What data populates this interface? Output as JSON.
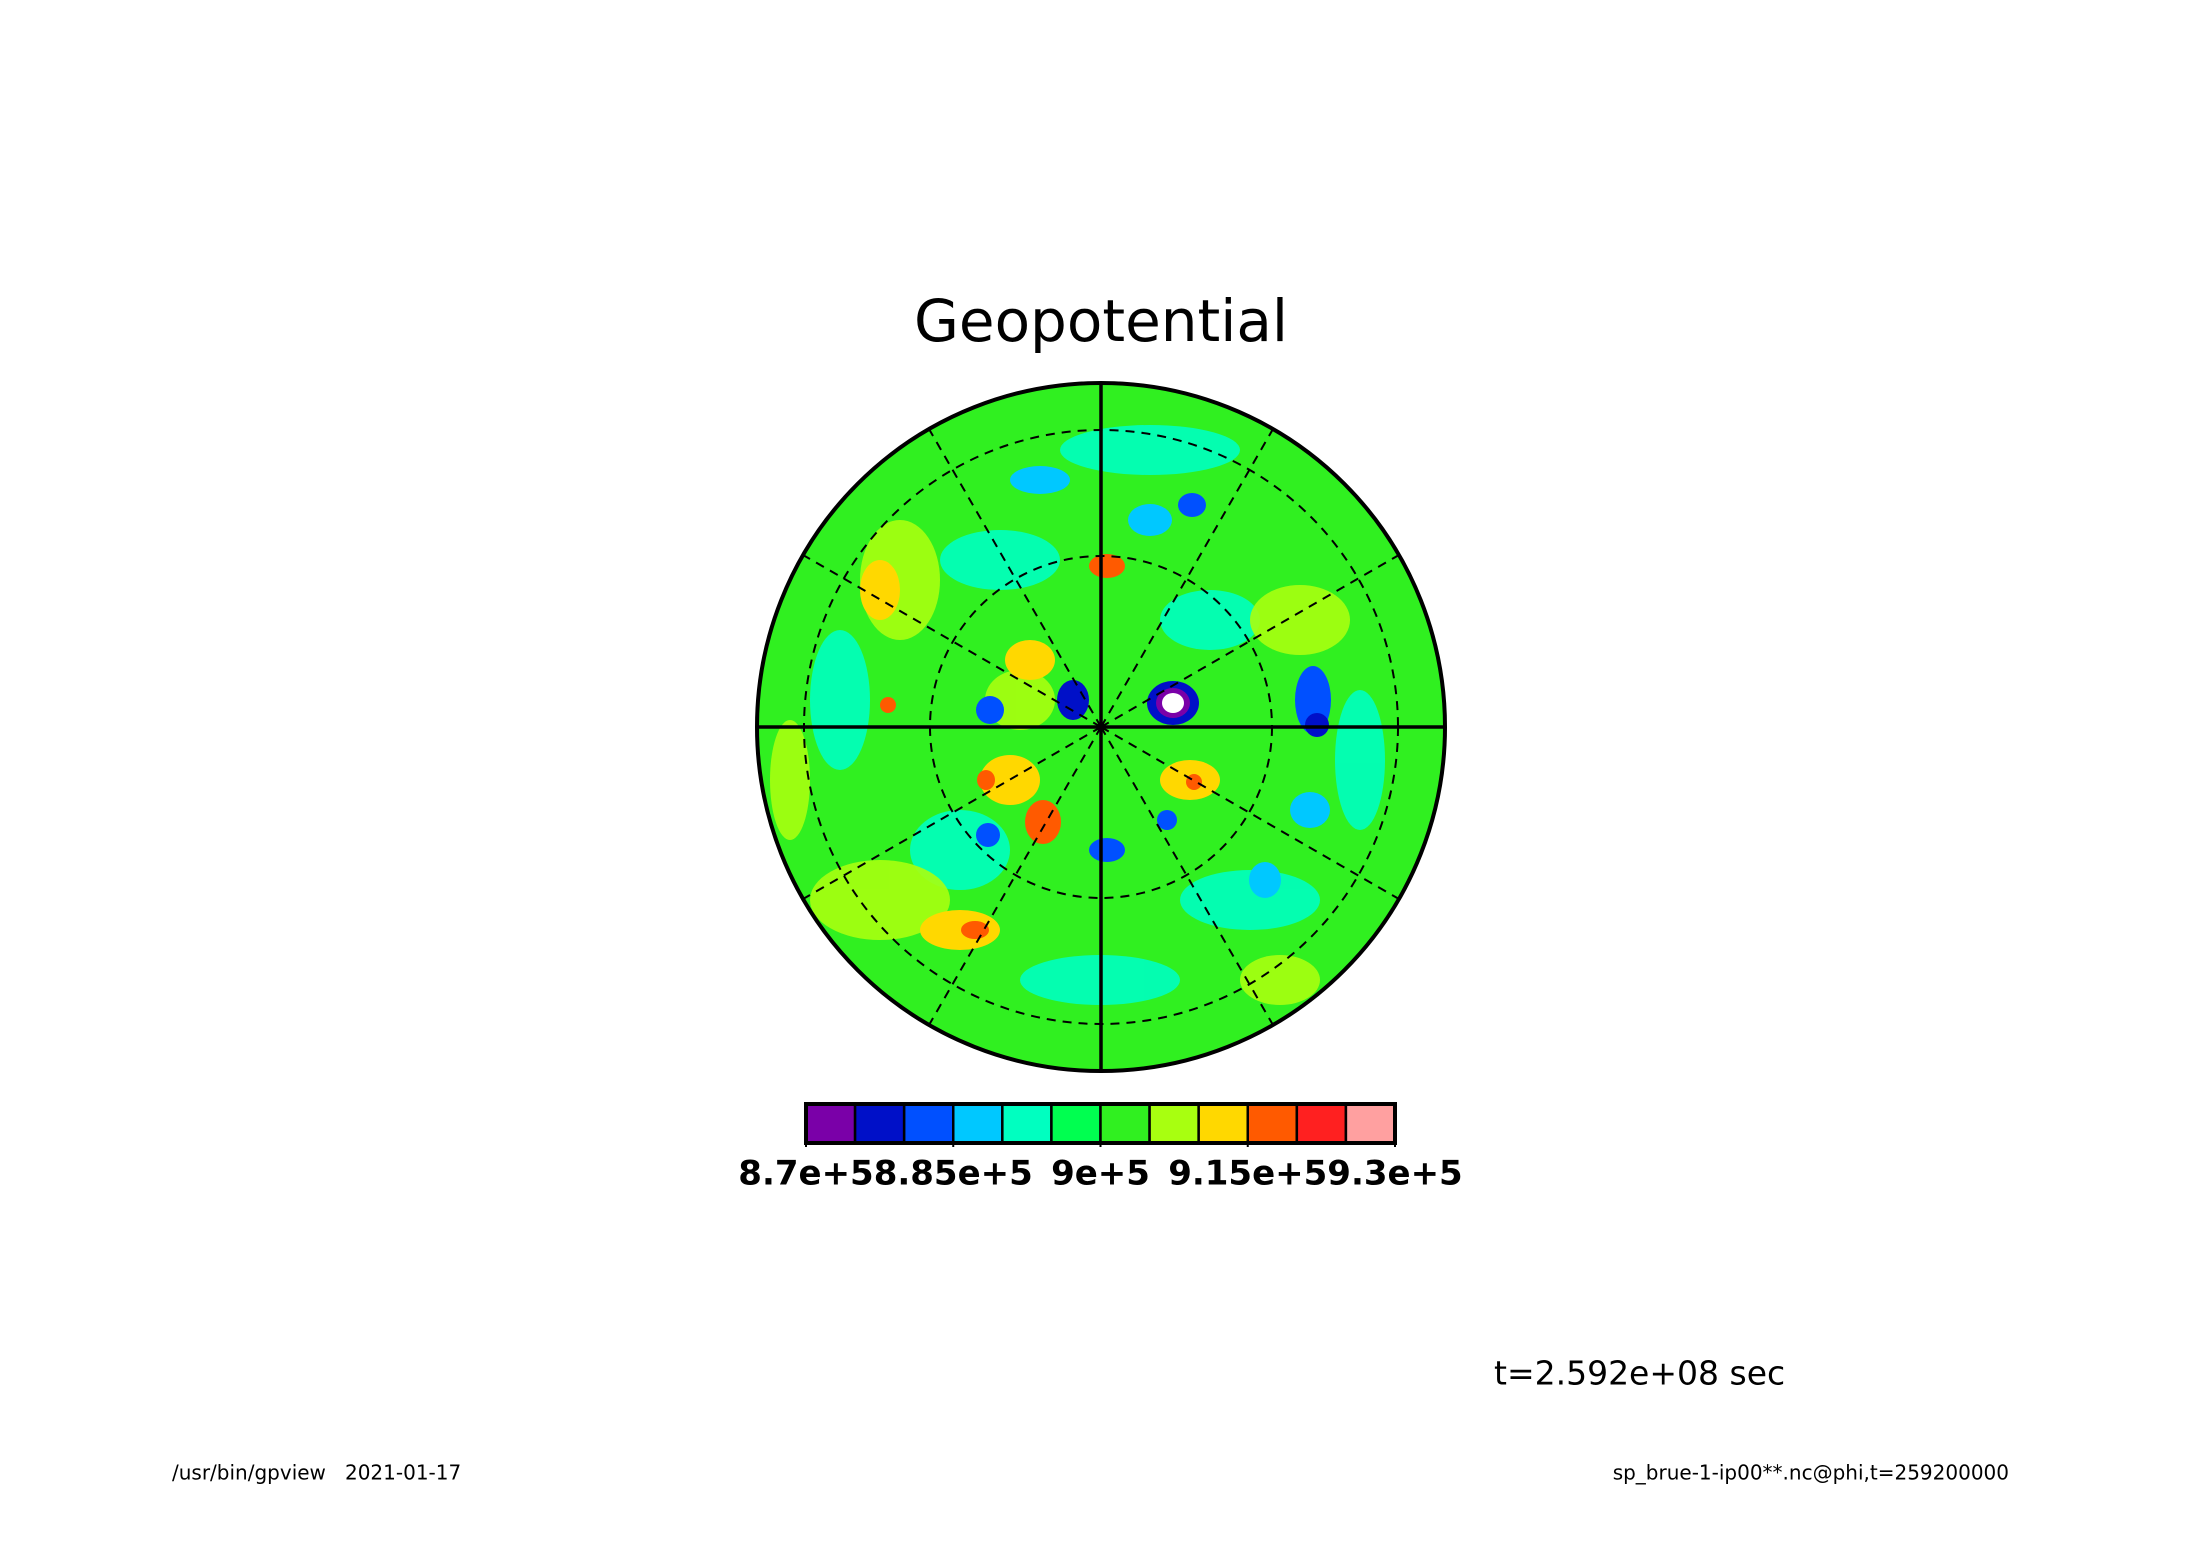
{
  "chart_data": {
    "type": "contour",
    "title": "Geopotential",
    "colorbar": {
      "levels": [
        870000,
        875000,
        880000,
        885000,
        890000,
        895000,
        900000,
        905000,
        910000,
        915000,
        920000,
        925000,
        930000
      ],
      "colors": [
        "#7a00a8",
        "#0010c8",
        "#0050ff",
        "#00c8ff",
        "#00ffc0",
        "#00ff50",
        "#30f020",
        "#a8ff10",
        "#ffd800",
        "#ff5a00",
        "#ff2020",
        "#ffa0a0"
      ],
      "ticks": [
        {
          "value": 870000,
          "label": "8.7e+5"
        },
        {
          "value": 885000,
          "label": "8.85e+5"
        },
        {
          "value": 900000,
          "label": "9e+5"
        },
        {
          "value": 915000,
          "label": "9.15e+5"
        },
        {
          "value": 930000,
          "label": "9.3e+5"
        }
      ]
    },
    "time_label": "t=2.592e+08 sec",
    "footer_left": "/usr/bin/gpview   2021-01-17",
    "footer_right": "sp_brue-1-ip00**.nc@phi,t=259200000"
  }
}
